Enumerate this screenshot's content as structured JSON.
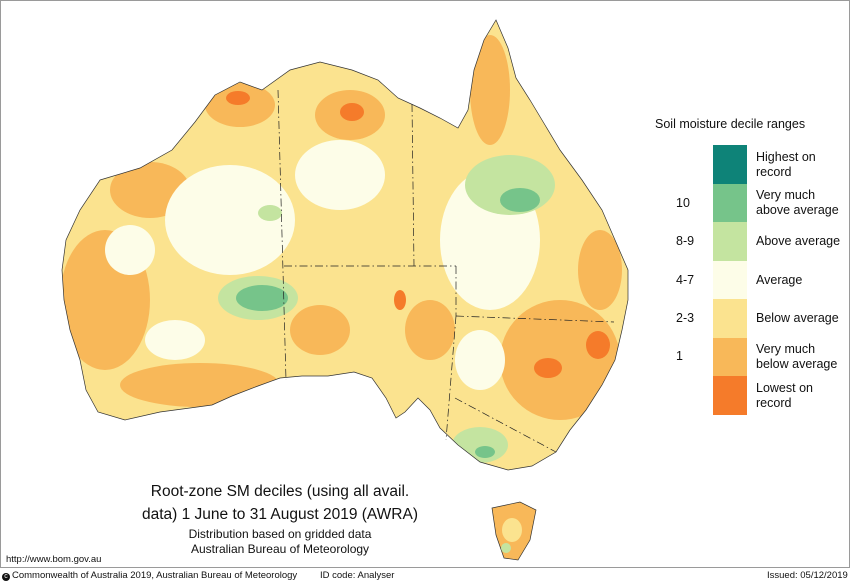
{
  "map": {
    "title_line1": "Root-zone SM deciles (using all avail.",
    "title_line2": "data) 1 June to 31 August 2019 (AWRA)",
    "subtitle_line1": "Distribution based on gridded data",
    "subtitle_line2": "Australian Bureau of Meteorology"
  },
  "legend": {
    "title": "Soil moisture decile ranges",
    "items": [
      {
        "label": "Highest on record",
        "line1": "Highest on",
        "line2": "record",
        "range": "",
        "color": "#0e8378"
      },
      {
        "label": "Very much above average",
        "line1": "Very much",
        "line2": "above average",
        "range": "10",
        "color": "#76c48a"
      },
      {
        "label": "Above average",
        "line1": "Above average",
        "line2": "",
        "range": "8-9",
        "color": "#c4e4a0"
      },
      {
        "label": "Average",
        "line1": "Average",
        "line2": "",
        "range": "4-7",
        "color": "#fdfde8"
      },
      {
        "label": "Below average",
        "line1": "Below average",
        "line2": "",
        "range": "2-3",
        "color": "#fbe38f"
      },
      {
        "label": "Very much below average",
        "line1": "Very much",
        "line2": "below average",
        "range": "1",
        "color": "#f8b859"
      },
      {
        "label": "Lowest on record",
        "line1": "Lowest on",
        "line2": "record",
        "range": "",
        "color": "#f57b2a"
      }
    ]
  },
  "source_url": "http://www.bom.gov.au",
  "footer": {
    "copyright": "Commonwealth of Australia 2019, Australian Bureau of Meteorology",
    "id_code": "ID code: Analyser",
    "issued": "Issued: 05/12/2019"
  }
}
